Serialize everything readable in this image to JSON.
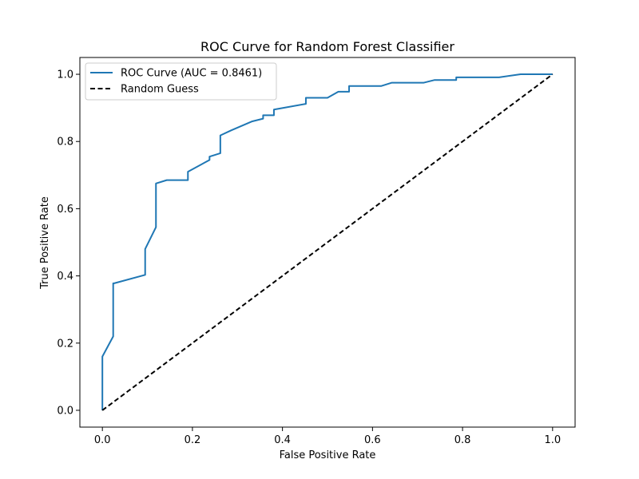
{
  "chart_data": {
    "type": "line",
    "title": "ROC Curve for Random Forest Classifier",
    "xlabel": "False Positive Rate",
    "ylabel": "True Positive Rate",
    "xlim": [
      -0.05,
      1.05
    ],
    "ylim": [
      -0.05,
      1.05
    ],
    "xticks": [
      0.0,
      0.2,
      0.4,
      0.6,
      0.8,
      1.0
    ],
    "yticks": [
      0.0,
      0.2,
      0.4,
      0.6,
      0.8,
      1.0
    ],
    "xtick_labels": [
      "0.0",
      "0.2",
      "0.4",
      "0.6",
      "0.8",
      "1.0"
    ],
    "ytick_labels": [
      "0.0",
      "0.2",
      "0.4",
      "0.6",
      "0.8",
      "1.0"
    ],
    "grid": false,
    "legend_position": "top-left",
    "series": [
      {
        "name": "ROC Curve (AUC = 0.8461)",
        "color": "#1f77b4",
        "style": "solid",
        "x": [
          0.0,
          0.0,
          0.024,
          0.024,
          0.026,
          0.095,
          0.095,
          0.119,
          0.119,
          0.143,
          0.19,
          0.19,
          0.238,
          0.238,
          0.262,
          0.262,
          0.286,
          0.333,
          0.357,
          0.357,
          0.381,
          0.381,
          0.452,
          0.452,
          0.5,
          0.524,
          0.548,
          0.548,
          0.619,
          0.643,
          0.714,
          0.738,
          0.786,
          0.786,
          0.881,
          0.929,
          1.0
        ],
        "y": [
          0.0,
          0.16,
          0.22,
          0.378,
          0.378,
          0.403,
          0.48,
          0.545,
          0.675,
          0.685,
          0.685,
          0.71,
          0.745,
          0.755,
          0.765,
          0.818,
          0.833,
          0.86,
          0.868,
          0.878,
          0.878,
          0.895,
          0.912,
          0.93,
          0.93,
          0.948,
          0.948,
          0.965,
          0.965,
          0.975,
          0.975,
          0.983,
          0.983,
          0.991,
          0.991,
          1.0,
          1.0
        ]
      },
      {
        "name": "Random Guess",
        "color": "#000000",
        "style": "dashed",
        "x": [
          0.0,
          1.0
        ],
        "y": [
          0.0,
          1.0
        ]
      }
    ]
  }
}
